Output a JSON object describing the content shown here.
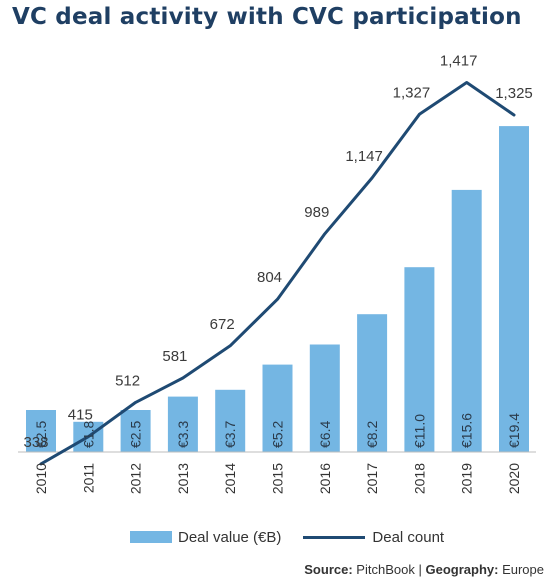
{
  "chart_data": {
    "type": "bar",
    "title": "VC deal activity with CVC participation",
    "categories": [
      "2010",
      "2011",
      "2012",
      "2013",
      "2014",
      "2015",
      "2016",
      "2017",
      "2018",
      "2019",
      "2020"
    ],
    "series": [
      {
        "name": "Deal value (€B)",
        "type": "bar",
        "values": [
          2.5,
          1.8,
          2.5,
          3.3,
          3.7,
          5.2,
          6.4,
          8.2,
          11.0,
          15.6,
          19.4
        ],
        "labels": [
          "€2.5",
          "€1.8",
          "€2.5",
          "€3.3",
          "€3.7",
          "€5.2",
          "€6.4",
          "€8.2",
          "€11.0",
          "€15.6",
          "€19.4"
        ],
        "color": "#74b6e3"
      },
      {
        "name": "Deal count",
        "type": "line",
        "values": [
          338,
          415,
          512,
          581,
          672,
          804,
          989,
          1147,
          1327,
          1417,
          1325
        ],
        "labels": [
          "338",
          "415",
          "512",
          "581",
          "672",
          "804",
          "989",
          "1,147",
          "1,327",
          "1,417",
          "1,325"
        ],
        "color": "#1f4a73"
      }
    ],
    "grid": false,
    "legend_position": "bottom"
  },
  "source": {
    "prefix": "Source:",
    "source_text": "PitchBook",
    "separator": "|",
    "geo_prefix": "Geography:",
    "geo_text": "Europe"
  }
}
